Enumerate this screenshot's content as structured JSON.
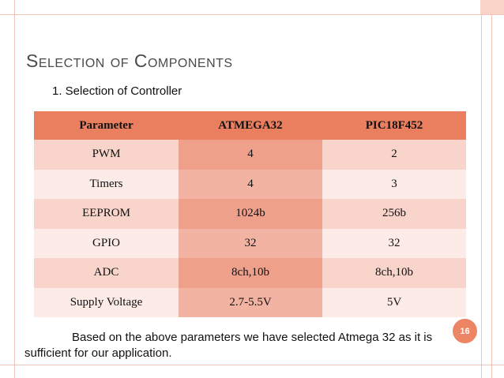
{
  "slide": {
    "title": "Selection of Components",
    "subtitle": "1.  Selection of Controller",
    "table": {
      "headers": [
        "Parameter",
        "ATMEGA32",
        "PIC18F452"
      ],
      "rows": [
        [
          "PWM",
          "4",
          "2"
        ],
        [
          "Timers",
          "4",
          "3"
        ],
        [
          "EEPROM",
          "1024b",
          "256b"
        ],
        [
          "GPIO",
          "32",
          "32"
        ],
        [
          "ADC",
          "8ch,10b",
          "8ch,10b"
        ],
        [
          "Supply Voltage",
          "2.7-5.5V",
          "5V"
        ]
      ]
    },
    "footer": "Based on the above parameters we have selected Atmega 32 as it is sufficient for our application.",
    "page_number": "16"
  },
  "colors": {
    "header_fill": "#e97f5f",
    "accent_column": "#efa08b",
    "row_light": "#fcebe6",
    "row_mid": "#f8d4ca",
    "page_badge": "#ec8563"
  }
}
